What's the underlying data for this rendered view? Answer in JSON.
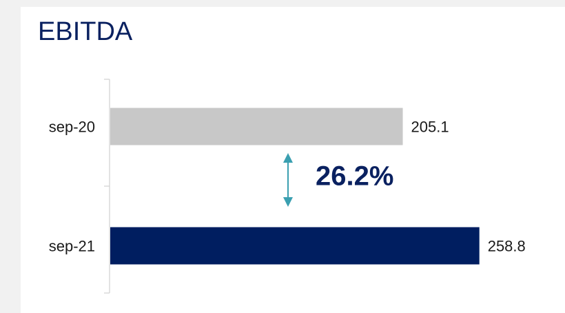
{
  "chart_data": {
    "type": "hbar",
    "title": "EBITDA",
    "categories": [
      "sep-20",
      "sep-21"
    ],
    "values": [
      205.1,
      258.8
    ],
    "colors": [
      "#c8c8c8",
      "#001e60"
    ],
    "xlim": [
      0,
      300
    ],
    "annotation": "26.2%"
  }
}
